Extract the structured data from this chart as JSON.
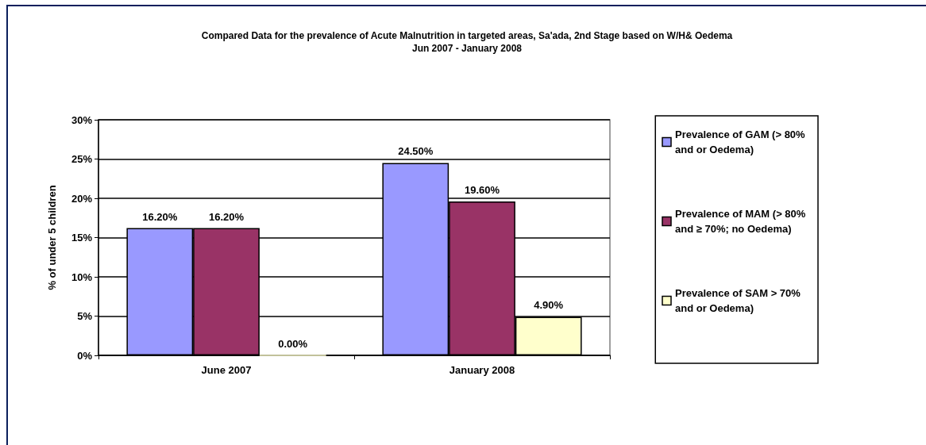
{
  "chart_data": {
    "type": "bar",
    "title": "Compared Data for the prevalence of Acute Malnutrition in targeted areas, Sa'ada, 2nd Stage based on W/H& Oedema",
    "subtitle": "Jun 2007 - January 2008",
    "ylabel": "% of under 5 children",
    "categories": [
      "June 2007",
      "January 2008"
    ],
    "series": [
      {
        "name": "Prevalence of GAM (> 80% and or Oedema)",
        "color": "#9999ff",
        "values": [
          16.2,
          24.5
        ],
        "value_labels": [
          "16.20%",
          "24.50%"
        ]
      },
      {
        "name": "Prevalence of MAM (> 80% and ≥ 70%; no Oedema)",
        "color": "#993366",
        "values": [
          16.2,
          19.6
        ],
        "value_labels": [
          "16.20%",
          "19.60%"
        ]
      },
      {
        "name": "Prevalence of SAM > 70% and or Oedema)",
        "color": "#ffffcc",
        "values": [
          0,
          4.9
        ],
        "value_labels": [
          "0.00%",
          "4.90%"
        ]
      }
    ],
    "ylim": [
      0,
      30
    ],
    "yticks": [
      {
        "value": 0,
        "label": "0%"
      },
      {
        "value": 5,
        "label": "5%"
      },
      {
        "value": 10,
        "label": "10%"
      },
      {
        "value": 15,
        "label": "15%"
      },
      {
        "value": 20,
        "label": "20%"
      },
      {
        "value": 25,
        "label": "25%"
      },
      {
        "value": 30,
        "label": "30%"
      }
    ],
    "grid": "y",
    "legend": "right"
  }
}
